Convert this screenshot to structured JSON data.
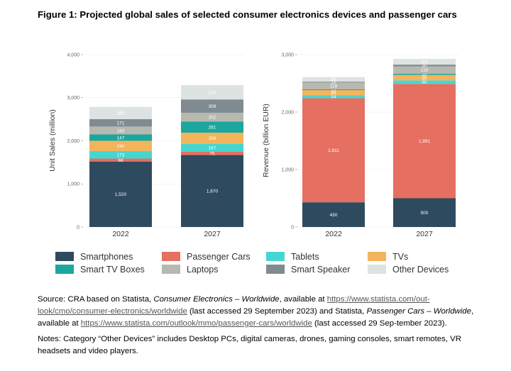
{
  "figure_title": "Figure 1: Projected global sales of selected consumer electronics devices and passenger cars",
  "colors": {
    "Smartphones": "#2e4a5f",
    "Passenger Cars": "#e56f61",
    "Tablets": "#46d6d2",
    "TVs": "#f2b45c",
    "Smart TV Boxes": "#1da69d",
    "Laptops": "#b7b8b0",
    "Smart Speaker": "#7f8b91",
    "Other Devices": "#dde3e2"
  },
  "legend": {
    "items": [
      "Smartphones",
      "Passenger Cars",
      "Tablets",
      "TVs",
      "Smart TV Boxes",
      "Laptops",
      "Smart Speaker",
      "Other Devices"
    ]
  },
  "chart_data": [
    {
      "type": "bar",
      "stacked": true,
      "title": "",
      "xlabel": "",
      "ylabel": "Unit Sales (million)",
      "categories": [
        "2022",
        "2027"
      ],
      "ylim": [
        0,
        4000
      ],
      "yticks": [
        "0",
        "1,000",
        "2,000",
        "3,000",
        "4,000"
      ],
      "series": [
        {
          "name": "Smartphones",
          "values": [
            1520,
            1670
          ],
          "labels": [
            "1,520",
            "1,670"
          ]
        },
        {
          "name": "Passenger Cars",
          "values": [
            68,
            75
          ],
          "labels": [
            "68",
            "75"
          ]
        },
        {
          "name": "Tablets",
          "values": [
            173,
            187
          ],
          "labels": [
            "173",
            "187"
          ]
        },
        {
          "name": "TVs",
          "values": [
            240,
            256
          ],
          "labels": [
            "240",
            "256"
          ]
        },
        {
          "name": "Smart TV Boxes",
          "values": [
            147,
            261
          ],
          "labels": [
            "147",
            "261"
          ]
        },
        {
          "name": "Laptops",
          "values": [
            183,
            202
          ],
          "labels": [
            "183",
            "202"
          ]
        },
        {
          "name": "Smart Speaker",
          "values": [
            171,
            309
          ],
          "labels": [
            "171",
            "309"
          ]
        },
        {
          "name": "Other Devices",
          "values": [
            285,
            334
          ],
          "labels": [
            "285",
            "334"
          ]
        }
      ]
    },
    {
      "type": "bar",
      "stacked": true,
      "title": "",
      "xlabel": "",
      "ylabel": "Revenue (billion EUR)",
      "categories": [
        "2022",
        "2027"
      ],
      "ylim": [
        0,
        3000
      ],
      "yticks": [
        "0",
        "1,000",
        "2,000",
        "3,000"
      ],
      "series": [
        {
          "name": "Smartphones",
          "values": [
            430,
            500
          ],
          "labels": [
            "430",
            "500"
          ]
        },
        {
          "name": "Passenger Cars",
          "values": [
            1811,
            1991
          ],
          "labels": [
            "1,811",
            "1,991"
          ]
        },
        {
          "name": "Tablets",
          "values": [
            54,
            60
          ],
          "labels": [
            "54",
            "60"
          ]
        },
        {
          "name": "TVs",
          "values": [
            88,
            95
          ],
          "labels": [
            "88",
            "95"
          ]
        },
        {
          "name": "Smart TV Boxes",
          "values": [
            12,
            20
          ],
          "labels": [
            "12",
            "20"
          ]
        },
        {
          "name": "Laptops",
          "values": [
            119,
            130
          ],
          "labels": [
            "119",
            "130"
          ]
        },
        {
          "name": "Smart Speaker",
          "values": [
            15,
            30
          ],
          "labels": [
            "15",
            "30"
          ]
        },
        {
          "name": "Other Devices",
          "values": [
            80,
            100
          ],
          "labels": [
            "80",
            "100"
          ]
        }
      ]
    }
  ],
  "source": {
    "p1": "Source: CRA based on Statista, ",
    "p1_it": "Consumer Electronics – Worldwide",
    "p2": ", available at ",
    "link1": "https://www.statista.com/out-look/cmo/consumer-electronics/worldwide",
    "p3": " (last accessed 29 September 2023) and Statista, ",
    "p3_it": "Passenger Cars – Worldwide",
    "p4": ", available at ",
    "link2": "https://www.statista.com/outlook/mmo/passenger-cars/worldwide",
    "p5": " (last accessed 29 Sep-tember 2023).",
    "notes": "Notes: Category “Other Devices” includes Desktop PCs, digital cameras, drones, gaming consoles, smart remotes, VR headsets and video players."
  }
}
